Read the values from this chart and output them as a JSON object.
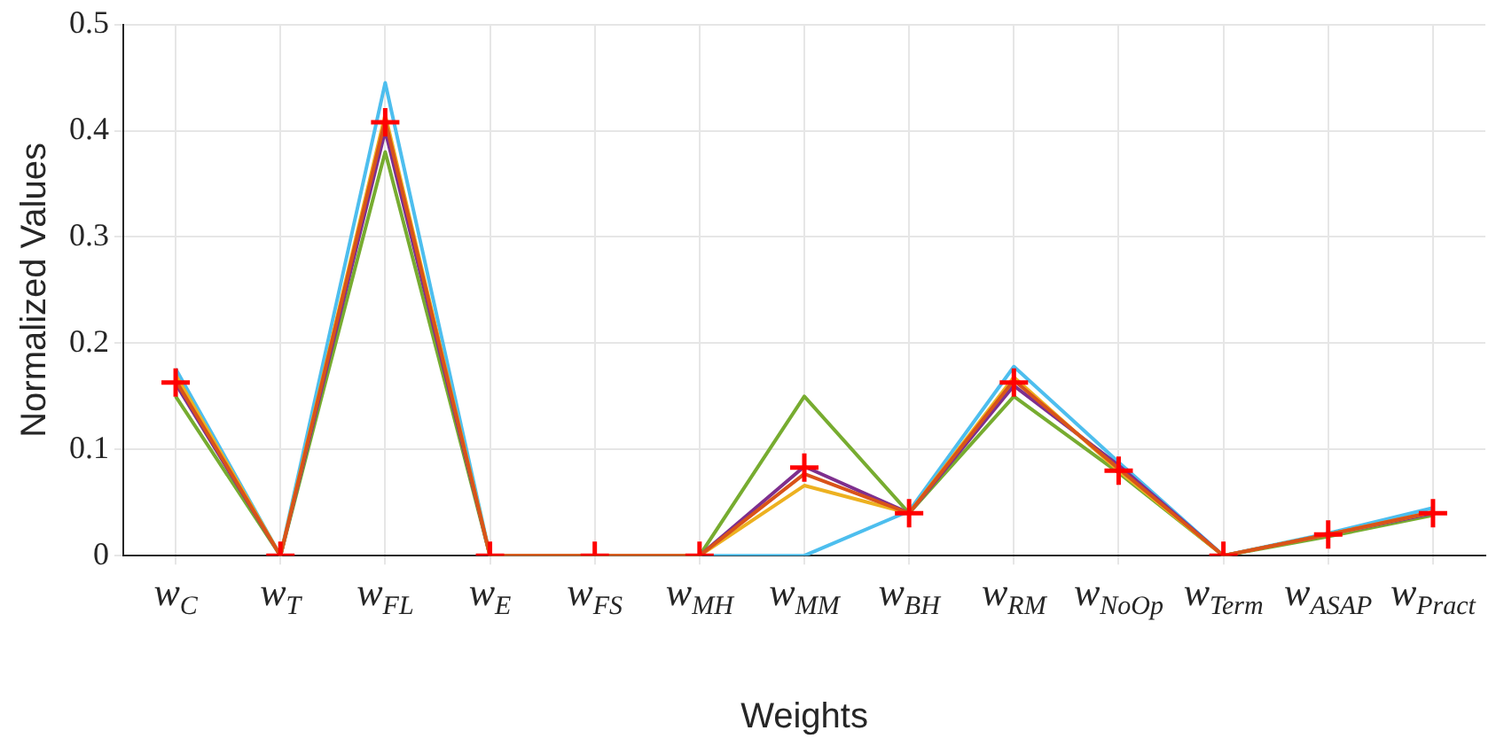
{
  "chart_data": {
    "type": "line",
    "xlabel": "Weights",
    "ylabel": "Normalized Values",
    "categories": [
      "w$_{C}$",
      "w$_{T}$",
      "w$_{FL}$",
      "w$_{E}$",
      "w$_{FS}$",
      "w$_{MH}$",
      "w$_{MM}$",
      "w$_{BH}$",
      "w$_{RM}$",
      "w$_{NoOp}$",
      "w$_{Term}$",
      "w$_{ASAP}$",
      "w$_{Pract}$"
    ],
    "series": [
      {
        "color": "#d95319",
        "values": [
          0.165,
          0,
          0.41,
          0,
          0,
          0,
          0.077,
          0.04,
          0.165,
          0.082,
          0,
          0.02,
          0.041
        ]
      },
      {
        "color": "#edb120",
        "values": [
          0.17,
          0,
          0.415,
          0,
          0,
          0,
          0.066,
          0.04,
          0.168,
          0.08,
          0,
          0.02,
          0.041
        ]
      },
      {
        "color": "#7e2f8e",
        "values": [
          0.162,
          0,
          0.4,
          0,
          0,
          0,
          0.084,
          0.04,
          0.16,
          0.085,
          0,
          0.02,
          0.04
        ]
      },
      {
        "color": "#77ac30",
        "values": [
          0.15,
          0,
          0.38,
          0,
          0,
          0,
          0.15,
          0.04,
          0.15,
          0.078,
          0,
          0.018,
          0.038
        ]
      },
      {
        "color": "#4dbeee",
        "values": [
          0.176,
          0,
          0.445,
          0,
          0,
          0,
          0,
          0.042,
          0.178,
          0.088,
          0,
          0.021,
          0.045
        ]
      },
      {
        "type": "scatter",
        "marker": "cross",
        "color": "#ff0000",
        "values": [
          0.163,
          0,
          0.408,
          0,
          0,
          0,
          0.083,
          0.04,
          0.163,
          0.08,
          0,
          0.02,
          0.04
        ]
      }
    ],
    "marker": "none",
    "line_style": "solid",
    "ylim": [
      0,
      0.5
    ],
    "yticks": [
      0,
      0.1,
      0.2,
      0.3,
      0.4,
      0.5
    ],
    "grid": true,
    "legend": false
  }
}
